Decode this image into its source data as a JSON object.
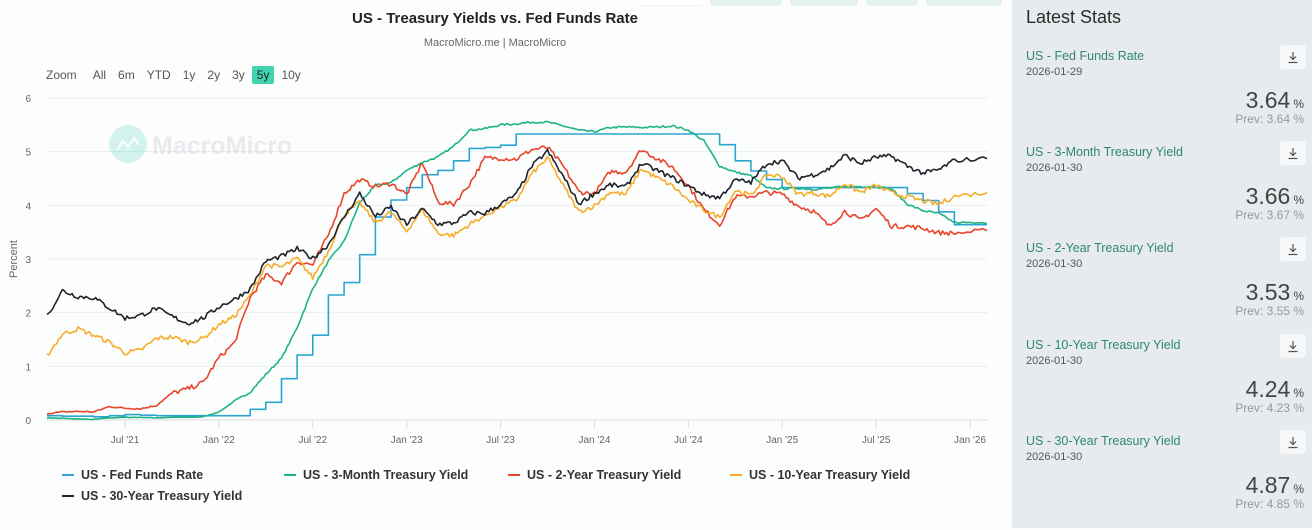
{
  "header": {
    "title": "US - Treasury Yields vs. Fed Funds Rate",
    "subtitle": "MacroMicro.me | MacroMicro",
    "watermark": "MacroMicro"
  },
  "range_selector": {
    "label": "Zoom",
    "options": [
      "All",
      "6m",
      "YTD",
      "1y",
      "2y",
      "3y",
      "5y",
      "10y"
    ],
    "active": "5y"
  },
  "sidebar": {
    "title": "Latest Stats",
    "stats": [
      {
        "name": "US - Fed Funds Rate",
        "date": "2026-01-29",
        "value": "3.64",
        "unit": "%",
        "prev": "Prev: 3.64 %"
      },
      {
        "name": "US - 3-Month Treasury Yield",
        "date": "2026-01-30",
        "value": "3.66",
        "unit": "%",
        "prev": "Prev: 3.67 %"
      },
      {
        "name": "US - 2-Year Treasury Yield",
        "date": "2026-01-30",
        "value": "3.53",
        "unit": "%",
        "prev": "Prev: 3.55 %"
      },
      {
        "name": "US - 10-Year Treasury Yield",
        "date": "2026-01-30",
        "value": "4.24",
        "unit": "%",
        "prev": "Prev: 4.23 %"
      },
      {
        "name": "US - 30-Year Treasury Yield",
        "date": "2026-01-30",
        "value": "4.87",
        "unit": "%",
        "prev": "Prev: 4.85 %"
      }
    ],
    "download_icon": "download-icon"
  },
  "chart_data": {
    "type": "line",
    "title": "US - Treasury Yields vs. Fed Funds Rate",
    "subtitle": "MacroMicro.me | MacroMicro",
    "xlabel": "",
    "ylabel": "Percent",
    "ylim": [
      0,
      6
    ],
    "yticks": [
      "0",
      "1",
      "2",
      "3",
      "4",
      "5",
      "6"
    ],
    "xticks": [
      "Jul '21",
      "Jan '22",
      "Jul '22",
      "Jan '23",
      "Jul '23",
      "Jan '24",
      "Jul '24",
      "Jan '25",
      "Jul '25",
      "Jan '26"
    ],
    "grid": true,
    "legend_position": "bottom",
    "x": [
      "2021-02",
      "2021-03",
      "2021-04",
      "2021-05",
      "2021-06",
      "2021-07",
      "2021-08",
      "2021-09",
      "2021-10",
      "2021-11",
      "2021-12",
      "2022-01",
      "2022-02",
      "2022-03",
      "2022-04",
      "2022-05",
      "2022-06",
      "2022-07",
      "2022-08",
      "2022-09",
      "2022-10",
      "2022-11",
      "2022-12",
      "2023-01",
      "2023-02",
      "2023-03",
      "2023-04",
      "2023-05",
      "2023-06",
      "2023-07",
      "2023-08",
      "2023-09",
      "2023-10",
      "2023-11",
      "2023-12",
      "2024-01",
      "2024-02",
      "2024-03",
      "2024-04",
      "2024-05",
      "2024-06",
      "2024-07",
      "2024-08",
      "2024-09",
      "2024-10",
      "2024-11",
      "2024-12",
      "2025-01",
      "2025-02",
      "2025-03",
      "2025-04",
      "2025-05",
      "2025-06",
      "2025-07",
      "2025-08",
      "2025-09",
      "2025-10",
      "2025-11",
      "2025-12",
      "2026-01"
    ],
    "series": [
      {
        "name": "US - Fed Funds Rate",
        "color": "#2ea5d0",
        "step": true,
        "values": [
          0.08,
          0.07,
          0.07,
          0.06,
          0.08,
          0.1,
          0.09,
          0.08,
          0.08,
          0.08,
          0.08,
          0.08,
          0.08,
          0.2,
          0.33,
          0.77,
          1.21,
          1.58,
          2.33,
          2.56,
          3.08,
          3.78,
          4.1,
          4.33,
          4.57,
          4.65,
          4.83,
          5.06,
          5.08,
          5.12,
          5.33,
          5.33,
          5.33,
          5.33,
          5.33,
          5.33,
          5.33,
          5.33,
          5.33,
          5.33,
          5.33,
          5.33,
          5.33,
          5.13,
          4.83,
          4.64,
          4.48,
          4.33,
          4.33,
          4.33,
          4.33,
          4.33,
          4.33,
          4.33,
          4.33,
          4.22,
          4.09,
          3.88,
          3.64,
          3.64
        ]
      },
      {
        "name": "US - 3-Month Treasury Yield",
        "color": "#1fb487",
        "values": [
          0.04,
          0.03,
          0.02,
          0.01,
          0.04,
          0.05,
          0.05,
          0.04,
          0.05,
          0.05,
          0.06,
          0.15,
          0.35,
          0.52,
          0.85,
          1.15,
          1.72,
          2.45,
          2.96,
          3.33,
          4.05,
          4.37,
          4.42,
          4.65,
          4.8,
          4.9,
          5.1,
          5.4,
          5.43,
          5.5,
          5.52,
          5.55,
          5.55,
          5.48,
          5.4,
          5.37,
          5.45,
          5.46,
          5.45,
          5.46,
          5.48,
          5.4,
          5.2,
          4.73,
          4.62,
          4.55,
          4.32,
          4.31,
          4.32,
          4.3,
          4.32,
          4.35,
          4.35,
          4.35,
          4.3,
          4.02,
          3.9,
          3.85,
          3.68,
          3.66
        ]
      },
      {
        "name": "US - 2-Year Treasury Yield",
        "color": "#e8452b",
        "values": [
          0.12,
          0.15,
          0.16,
          0.15,
          0.25,
          0.22,
          0.21,
          0.27,
          0.5,
          0.58,
          0.7,
          1.16,
          1.44,
          2.28,
          2.7,
          2.56,
          2.95,
          2.89,
          3.45,
          4.22,
          4.48,
          4.35,
          4.41,
          4.2,
          4.8,
          4.06,
          4.02,
          4.39,
          4.88,
          4.88,
          4.86,
          5.04,
          5.08,
          4.73,
          4.25,
          4.21,
          4.63,
          4.62,
          5.04,
          4.87,
          4.71,
          4.37,
          3.92,
          3.64,
          4.16,
          4.17,
          4.24,
          4.21,
          3.99,
          3.89,
          3.61,
          3.89,
          3.72,
          3.94,
          3.61,
          3.61,
          3.57,
          3.49,
          3.48,
          3.53
        ]
      },
      {
        "name": "US - 10-Year Treasury Yield",
        "color": "#f5ad2a",
        "values": [
          1.2,
          1.6,
          1.7,
          1.58,
          1.45,
          1.25,
          1.3,
          1.52,
          1.55,
          1.45,
          1.52,
          1.78,
          1.93,
          2.32,
          2.89,
          2.85,
          3.01,
          2.65,
          3.15,
          3.83,
          4.05,
          3.68,
          3.87,
          3.52,
          3.92,
          3.48,
          3.44,
          3.64,
          3.81,
          3.97,
          4.09,
          4.59,
          4.88,
          4.37,
          3.88,
          3.99,
          4.25,
          4.2,
          4.68,
          4.51,
          4.36,
          4.09,
          3.91,
          3.78,
          4.28,
          4.18,
          4.57,
          4.54,
          4.21,
          4.23,
          4.17,
          4.41,
          4.24,
          4.37,
          4.23,
          4.16,
          4.08,
          4.02,
          4.17,
          4.24
        ]
      },
      {
        "name": "US - 30-Year Treasury Yield",
        "color": "#20232b",
        "values": [
          1.94,
          2.41,
          2.3,
          2.28,
          2.09,
          1.9,
          1.95,
          2.08,
          1.93,
          1.8,
          1.9,
          2.11,
          2.25,
          2.44,
          2.96,
          3.05,
          3.19,
          3.01,
          3.27,
          3.78,
          4.22,
          3.79,
          3.97,
          3.64,
          3.93,
          3.65,
          3.67,
          3.86,
          3.85,
          4.02,
          4.2,
          4.73,
          5.01,
          4.54,
          4.03,
          4.22,
          4.38,
          4.34,
          4.78,
          4.65,
          4.51,
          4.36,
          4.2,
          4.14,
          4.47,
          4.43,
          4.78,
          4.83,
          4.51,
          4.57,
          4.68,
          4.93,
          4.78,
          4.9,
          4.91,
          4.73,
          4.6,
          4.66,
          4.84,
          4.87
        ]
      }
    ]
  }
}
